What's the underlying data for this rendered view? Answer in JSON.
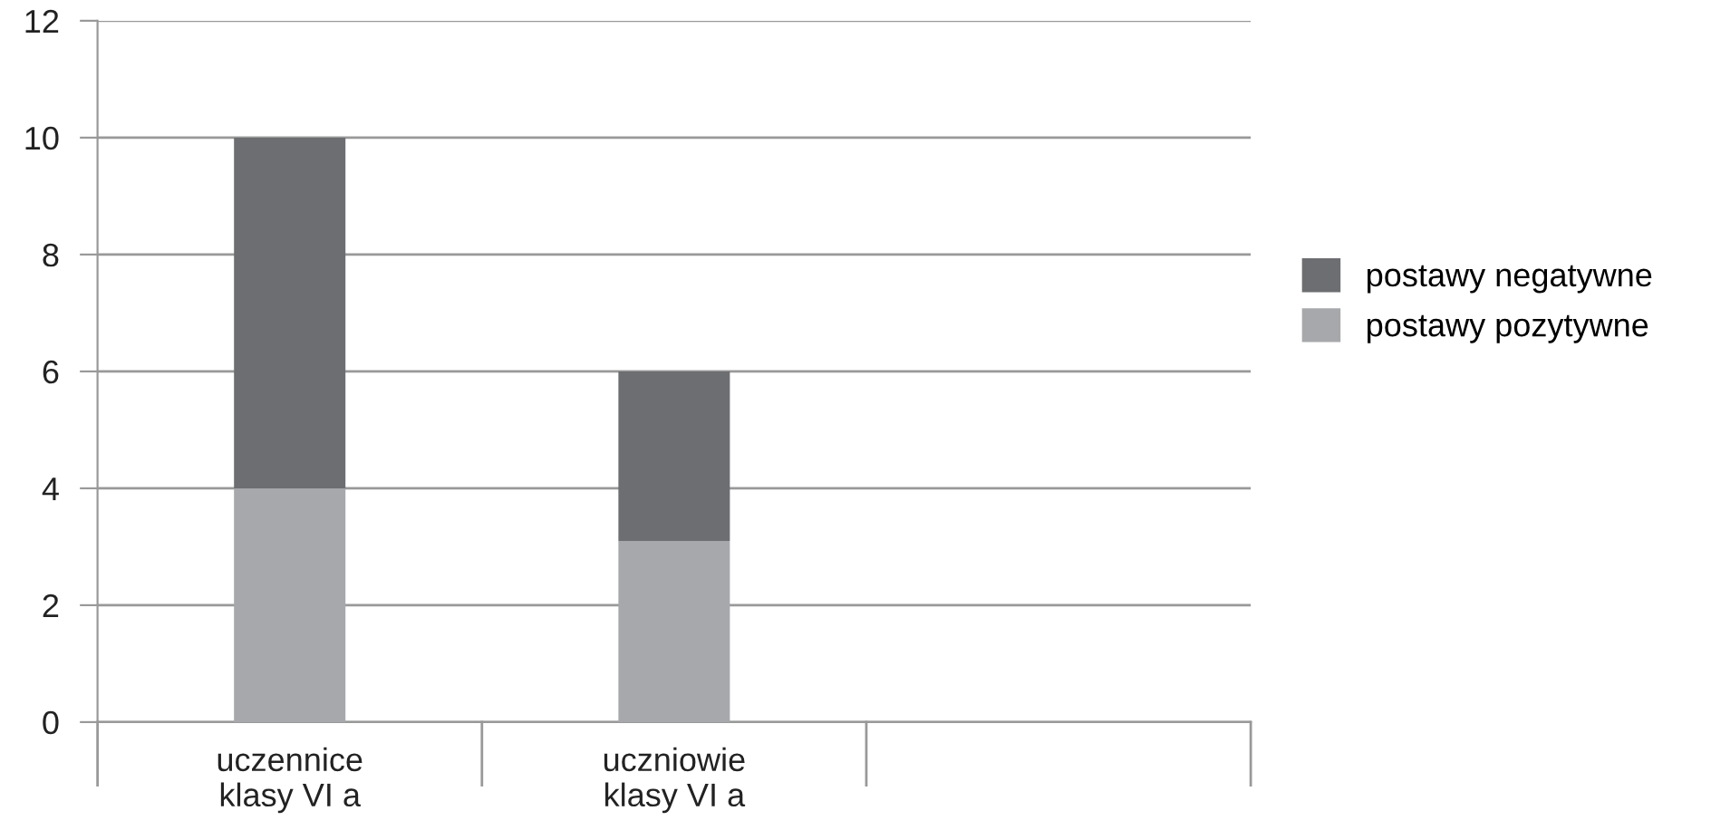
{
  "chart_data": {
    "type": "bar",
    "stacked": true,
    "categories": [
      "uczennice\nklasy VI a",
      "uczniowie\nklasy VI a",
      null
    ],
    "series": [
      {
        "name": "postawy pozytywne",
        "color": "#a7a8ab",
        "values": [
          4,
          3.1,
          null
        ]
      },
      {
        "name": "postawy negatywne",
        "color": "#6d6e71",
        "values": [
          6,
          2.9,
          null
        ]
      }
    ],
    "ylim": [
      0,
      12
    ],
    "yticks": [
      0,
      2,
      4,
      6,
      8,
      10,
      12
    ],
    "grid": "y",
    "legend": "right"
  }
}
